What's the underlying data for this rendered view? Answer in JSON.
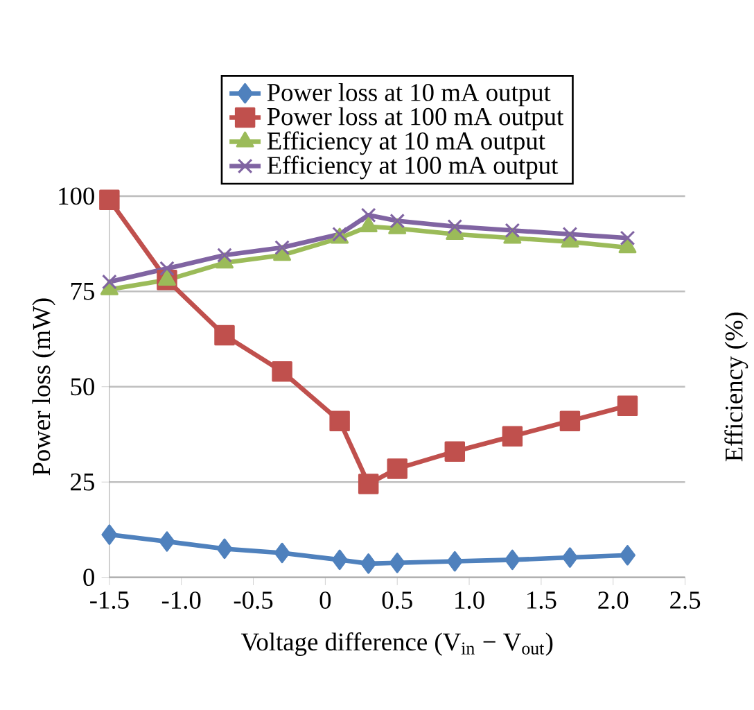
{
  "chart_data": {
    "type": "line",
    "xlabel": "Voltage difference (V$_{in}$ − V$_{out}$)",
    "ylabel": "Power loss (mW)",
    "y2label": "Efficiency (%)",
    "x": [
      -1.5,
      -1.1,
      -0.7,
      -0.3,
      0.1,
      0.3,
      0.5,
      0.9,
      1.3,
      1.7,
      2.1
    ],
    "series": [
      {
        "name": "Power loss at 10 mA output",
        "color": "#4f81bd",
        "marker": "diamond",
        "values": [
          11.2,
          9.4,
          7.5,
          6.4,
          4.6,
          3.6,
          3.8,
          4.2,
          4.6,
          5.2,
          5.8
        ]
      },
      {
        "name": "Power loss at 100 mA output",
        "color": "#c0504d",
        "marker": "square",
        "values": [
          99,
          78,
          63.5,
          54,
          41,
          24.5,
          28.5,
          33,
          37,
          41,
          45
        ]
      },
      {
        "name": "Efficiency at 10 mA output",
        "color": "#9bbb59",
        "marker": "triangle",
        "values": [
          75.5,
          78,
          82.5,
          84.5,
          89,
          92,
          91.5,
          90,
          89,
          88,
          86.5
        ]
      },
      {
        "name": "Efficiency at 100 mA output",
        "color": "#8064a2",
        "marker": "cross",
        "values": [
          77.5,
          81,
          84.5,
          86.5,
          90,
          95,
          93.5,
          92,
          91,
          90,
          89
        ]
      }
    ],
    "xlim": [
      -1.5,
      2.5
    ],
    "ylim": [
      0,
      100
    ],
    "xticks": [
      {
        "value": -1.5,
        "label": "-1.5"
      },
      {
        "value": -1,
        "label": "-1.0"
      },
      {
        "value": -0.5,
        "label": "-0.5"
      },
      {
        "value": 0,
        "label": "0"
      },
      {
        "value": 0.5,
        "label": "0.5"
      },
      {
        "value": 1,
        "label": "1.0"
      },
      {
        "value": 1.5,
        "label": "1.5"
      },
      {
        "value": 2,
        "label": "2.0"
      },
      {
        "value": 2.5,
        "label": "2.5"
      }
    ],
    "yticks": [
      0,
      25,
      50,
      75,
      100
    ],
    "grid": "y",
    "legend": "top",
    "line_style": "solid"
  }
}
